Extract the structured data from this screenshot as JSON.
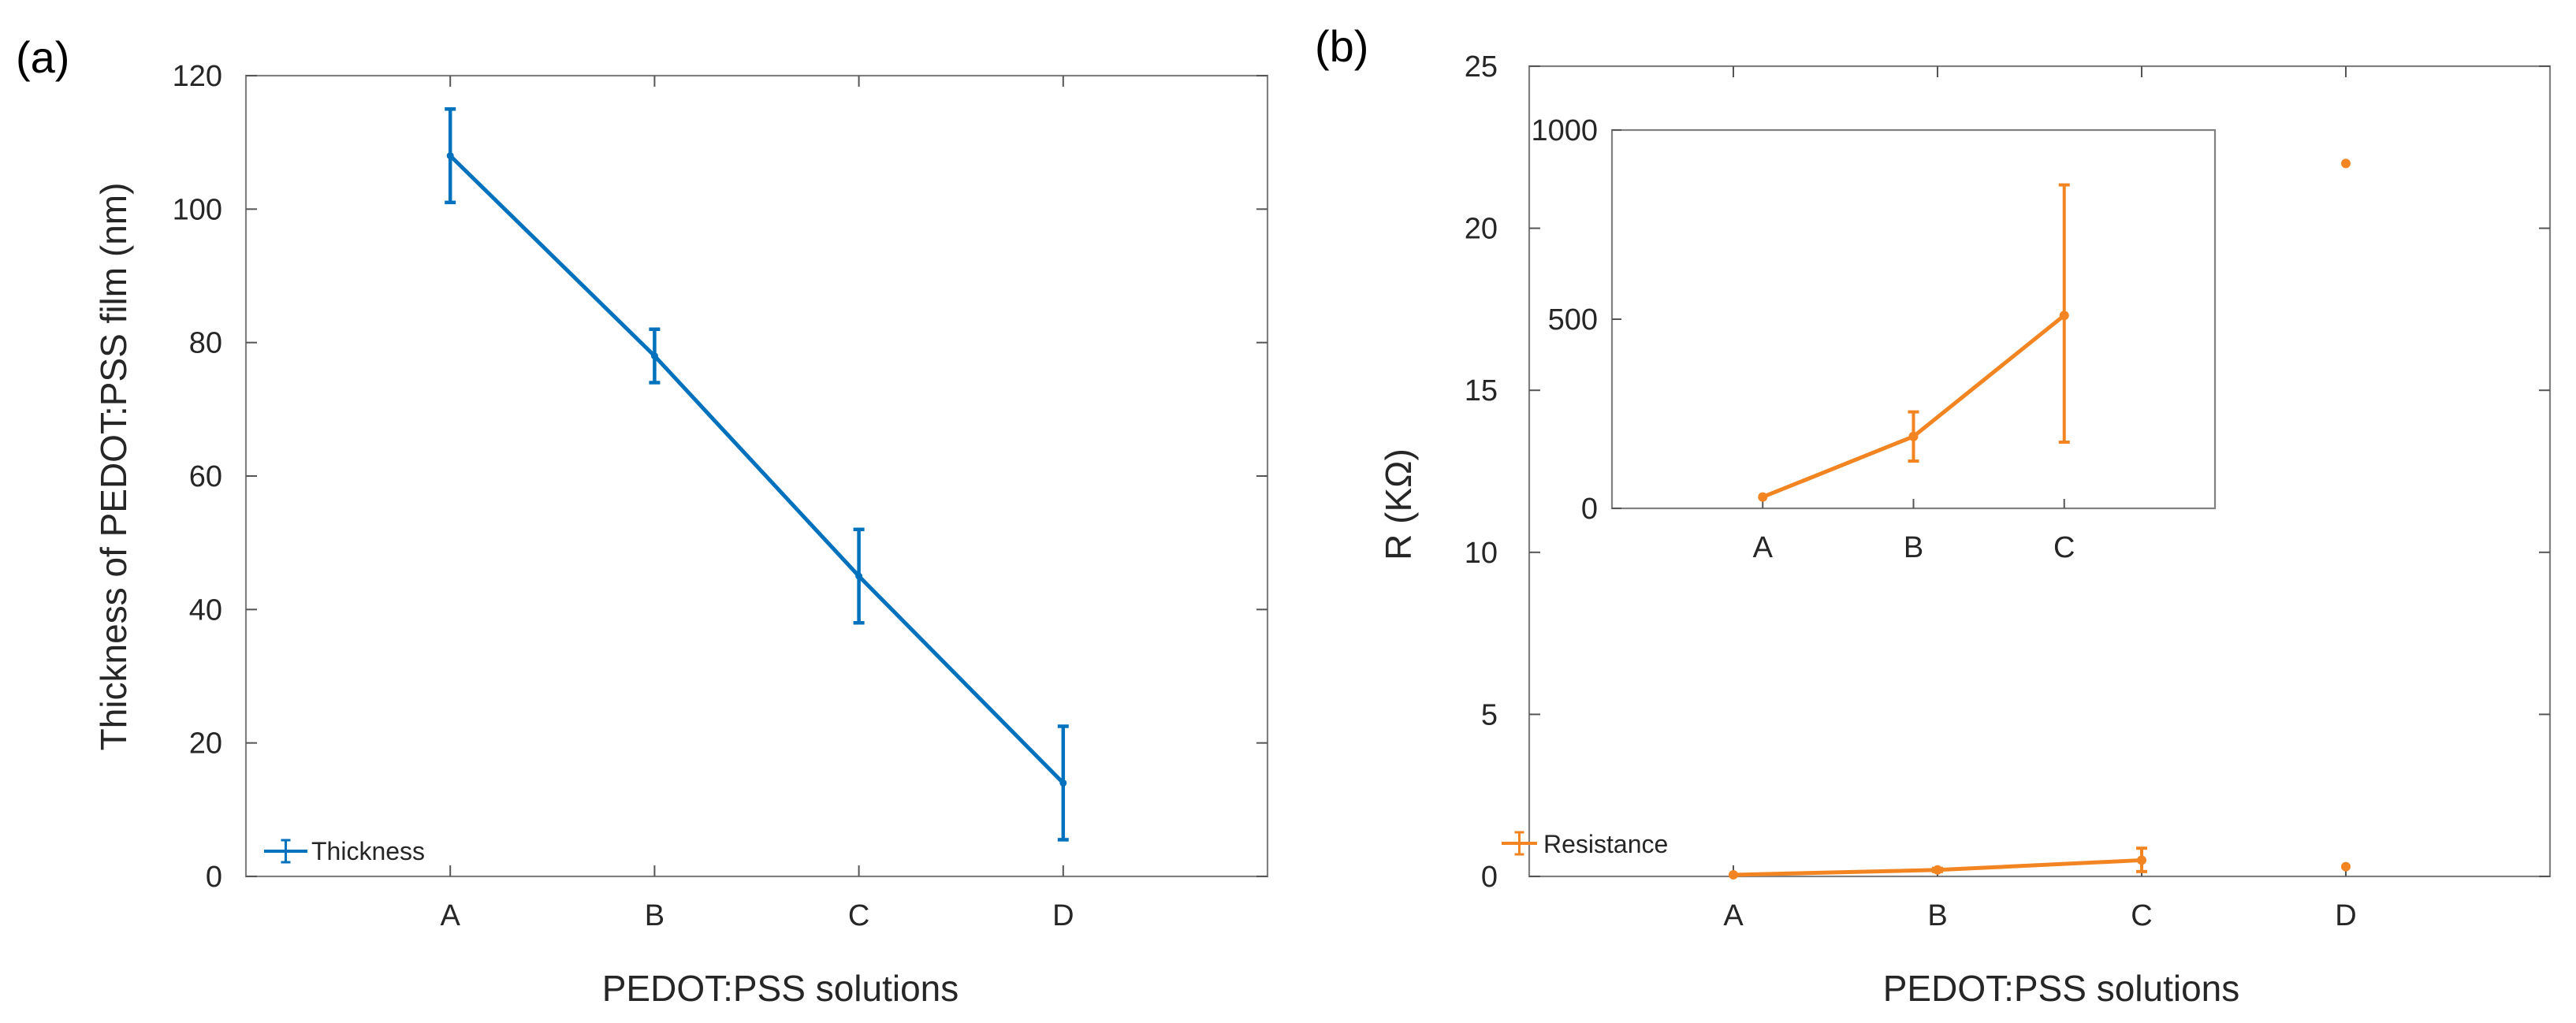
{
  "chart_data": [
    {
      "panel": "(a)",
      "type": "line",
      "title": "",
      "xlabel": "PEDOT:PSS solutions",
      "ylabel": "Thickness of PEDOT:PSS film (nm)",
      "categories": [
        "A",
        "B",
        "C",
        "D"
      ],
      "xlim": [
        0,
        5
      ],
      "ylim": [
        0,
        120
      ],
      "yticks": [
        0,
        20,
        40,
        60,
        80,
        100,
        120
      ],
      "grid": false,
      "legend": {
        "placement": "bottom-left",
        "entries": [
          "Thickness"
        ]
      },
      "series": [
        {
          "name": "Thickness",
          "color": "#0072BD",
          "x": [
            1,
            2,
            3,
            4
          ],
          "values": [
            108,
            78,
            45,
            14
          ],
          "error_low": [
            7,
            4,
            7,
            8.5
          ],
          "error_high": [
            7,
            4,
            7,
            8.5
          ]
        }
      ]
    },
    {
      "panel": "(b)",
      "type": "line",
      "title": "",
      "xlabel": "PEDOT:PSS solutions",
      "ylabel": "R (KΩ)",
      "categories": [
        "A",
        "B",
        "C",
        "D"
      ],
      "xlim": [
        0,
        5
      ],
      "ylim": [
        0,
        25
      ],
      "yticks": [
        0,
        5,
        10,
        15,
        20,
        25
      ],
      "grid": false,
      "legend": {
        "placement": "bottom-left",
        "entries": [
          "Resistance"
        ]
      },
      "series": [
        {
          "name": "Resistance",
          "color": "#F28522",
          "x": [
            1,
            2,
            3
          ],
          "values": [
            0.05,
            0.2,
            0.5
          ],
          "error_low": [
            0,
            0.05,
            0.35
          ],
          "error_high": [
            0,
            0.05,
            0.37
          ],
          "connect": true
        },
        {
          "name": "D (upper)",
          "color": "#F28522",
          "x": [
            4
          ],
          "values": [
            22
          ],
          "connect": false
        },
        {
          "name": "D (lower)",
          "color": "#F28522",
          "x": [
            4
          ],
          "values": [
            0.3
          ],
          "connect": false
        }
      ],
      "inset": {
        "categories": [
          "A",
          "B",
          "C"
        ],
        "xlim": [
          0,
          4
        ],
        "ylim": [
          0,
          1000
        ],
        "yticks": [
          0,
          500,
          1000
        ],
        "series": [
          {
            "name": "Resistance (inset)",
            "color": "#F28522",
            "x": [
              1,
              2,
              3
            ],
            "values": [
              30,
              190,
              510
            ],
            "error_low": [
              0,
              65,
              335
            ],
            "error_high": [
              0,
              65,
              345
            ]
          }
        ]
      }
    }
  ]
}
